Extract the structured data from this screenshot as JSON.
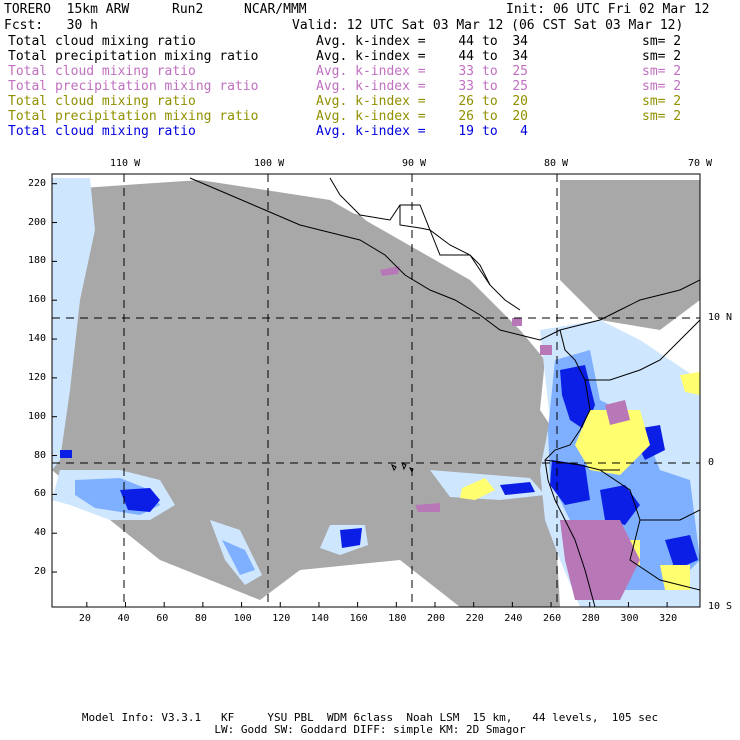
{
  "header": {
    "model": "TORERO  15km ARW",
    "run": "Run2",
    "org": "NCAR/MMM",
    "init": "Init: 06 UTC Fri 02 Mar 12",
    "fcst": "Fcst:   30 h",
    "valid": "Valid: 12 UTC Sat 03 Mar 12 (06 CST Sat 03 Mar 12)"
  },
  "legend": [
    {
      "variable": "Total cloud mixing ratio",
      "avg_label": "Avg. k-index =",
      "k_from": "44",
      "to": "to",
      "k_to": "34",
      "sm": "sm= 2",
      "color": "#000000"
    },
    {
      "variable": "Total precipitation mixing ratio",
      "avg_label": "Avg. k-index =",
      "k_from": "44",
      "to": "to",
      "k_to": "34",
      "sm": "sm= 2",
      "color": "#000000"
    },
    {
      "variable": "Total cloud mixing ratio",
      "avg_label": "Avg. k-index =",
      "k_from": "33",
      "to": "to",
      "k_to": "25",
      "sm": "sm= 2",
      "color": "#c070c0"
    },
    {
      "variable": "Total precipitation mixing ratio",
      "avg_label": "Avg. k-index =",
      "k_from": "33",
      "to": "to",
      "k_to": "25",
      "sm": "sm= 2",
      "color": "#c070c0"
    },
    {
      "variable": "Total cloud mixing ratio",
      "avg_label": "Avg. k-index =",
      "k_from": "26",
      "to": "to",
      "k_to": "20",
      "sm": "sm= 2",
      "color": "#909000"
    },
    {
      "variable": "Total precipitation mixing ratio",
      "avg_label": "Avg. k-index =",
      "k_from": "26",
      "to": "to",
      "k_to": "20",
      "sm": "sm= 2",
      "color": "#909000"
    },
    {
      "variable": "Total cloud mixing ratio",
      "avg_label": "Avg. k-index =",
      "k_from": "19",
      "to": "to",
      "k_to": "4",
      "sm": "",
      "color": "#0000e0"
    }
  ],
  "map": {
    "lon_labels": [
      "110 W",
      "100 W",
      "90 W",
      "80 W",
      "70 W"
    ],
    "lat_labels": [
      "10 N",
      "0",
      "10 S"
    ],
    "x_ticks": [
      "20",
      "40",
      "60",
      "80",
      "100",
      "120",
      "140",
      "160",
      "180",
      "200",
      "220",
      "240",
      "260",
      "280",
      "300",
      "320"
    ],
    "y_ticks": [
      "220",
      "200",
      "180",
      "160",
      "140",
      "120",
      "100",
      "80",
      "60",
      "40",
      "20"
    ],
    "colors": {
      "cloud_gray": "#a8a8a8",
      "light_blue": "#cfe6ff",
      "medium_blue": "#7fb0ff",
      "deep_blue": "#0a1ee6",
      "yellow": "#ffff70",
      "purple": "#b878b8"
    }
  },
  "footer": {
    "line1": "Model Info: V3.3.1   KF     YSU PBL  WDM 6class  Noah LSM  15 km,   44 levels,  105 sec",
    "line2": "LW: Godd SW: Goddard DIFF: simple KM: 2D Smagor"
  }
}
